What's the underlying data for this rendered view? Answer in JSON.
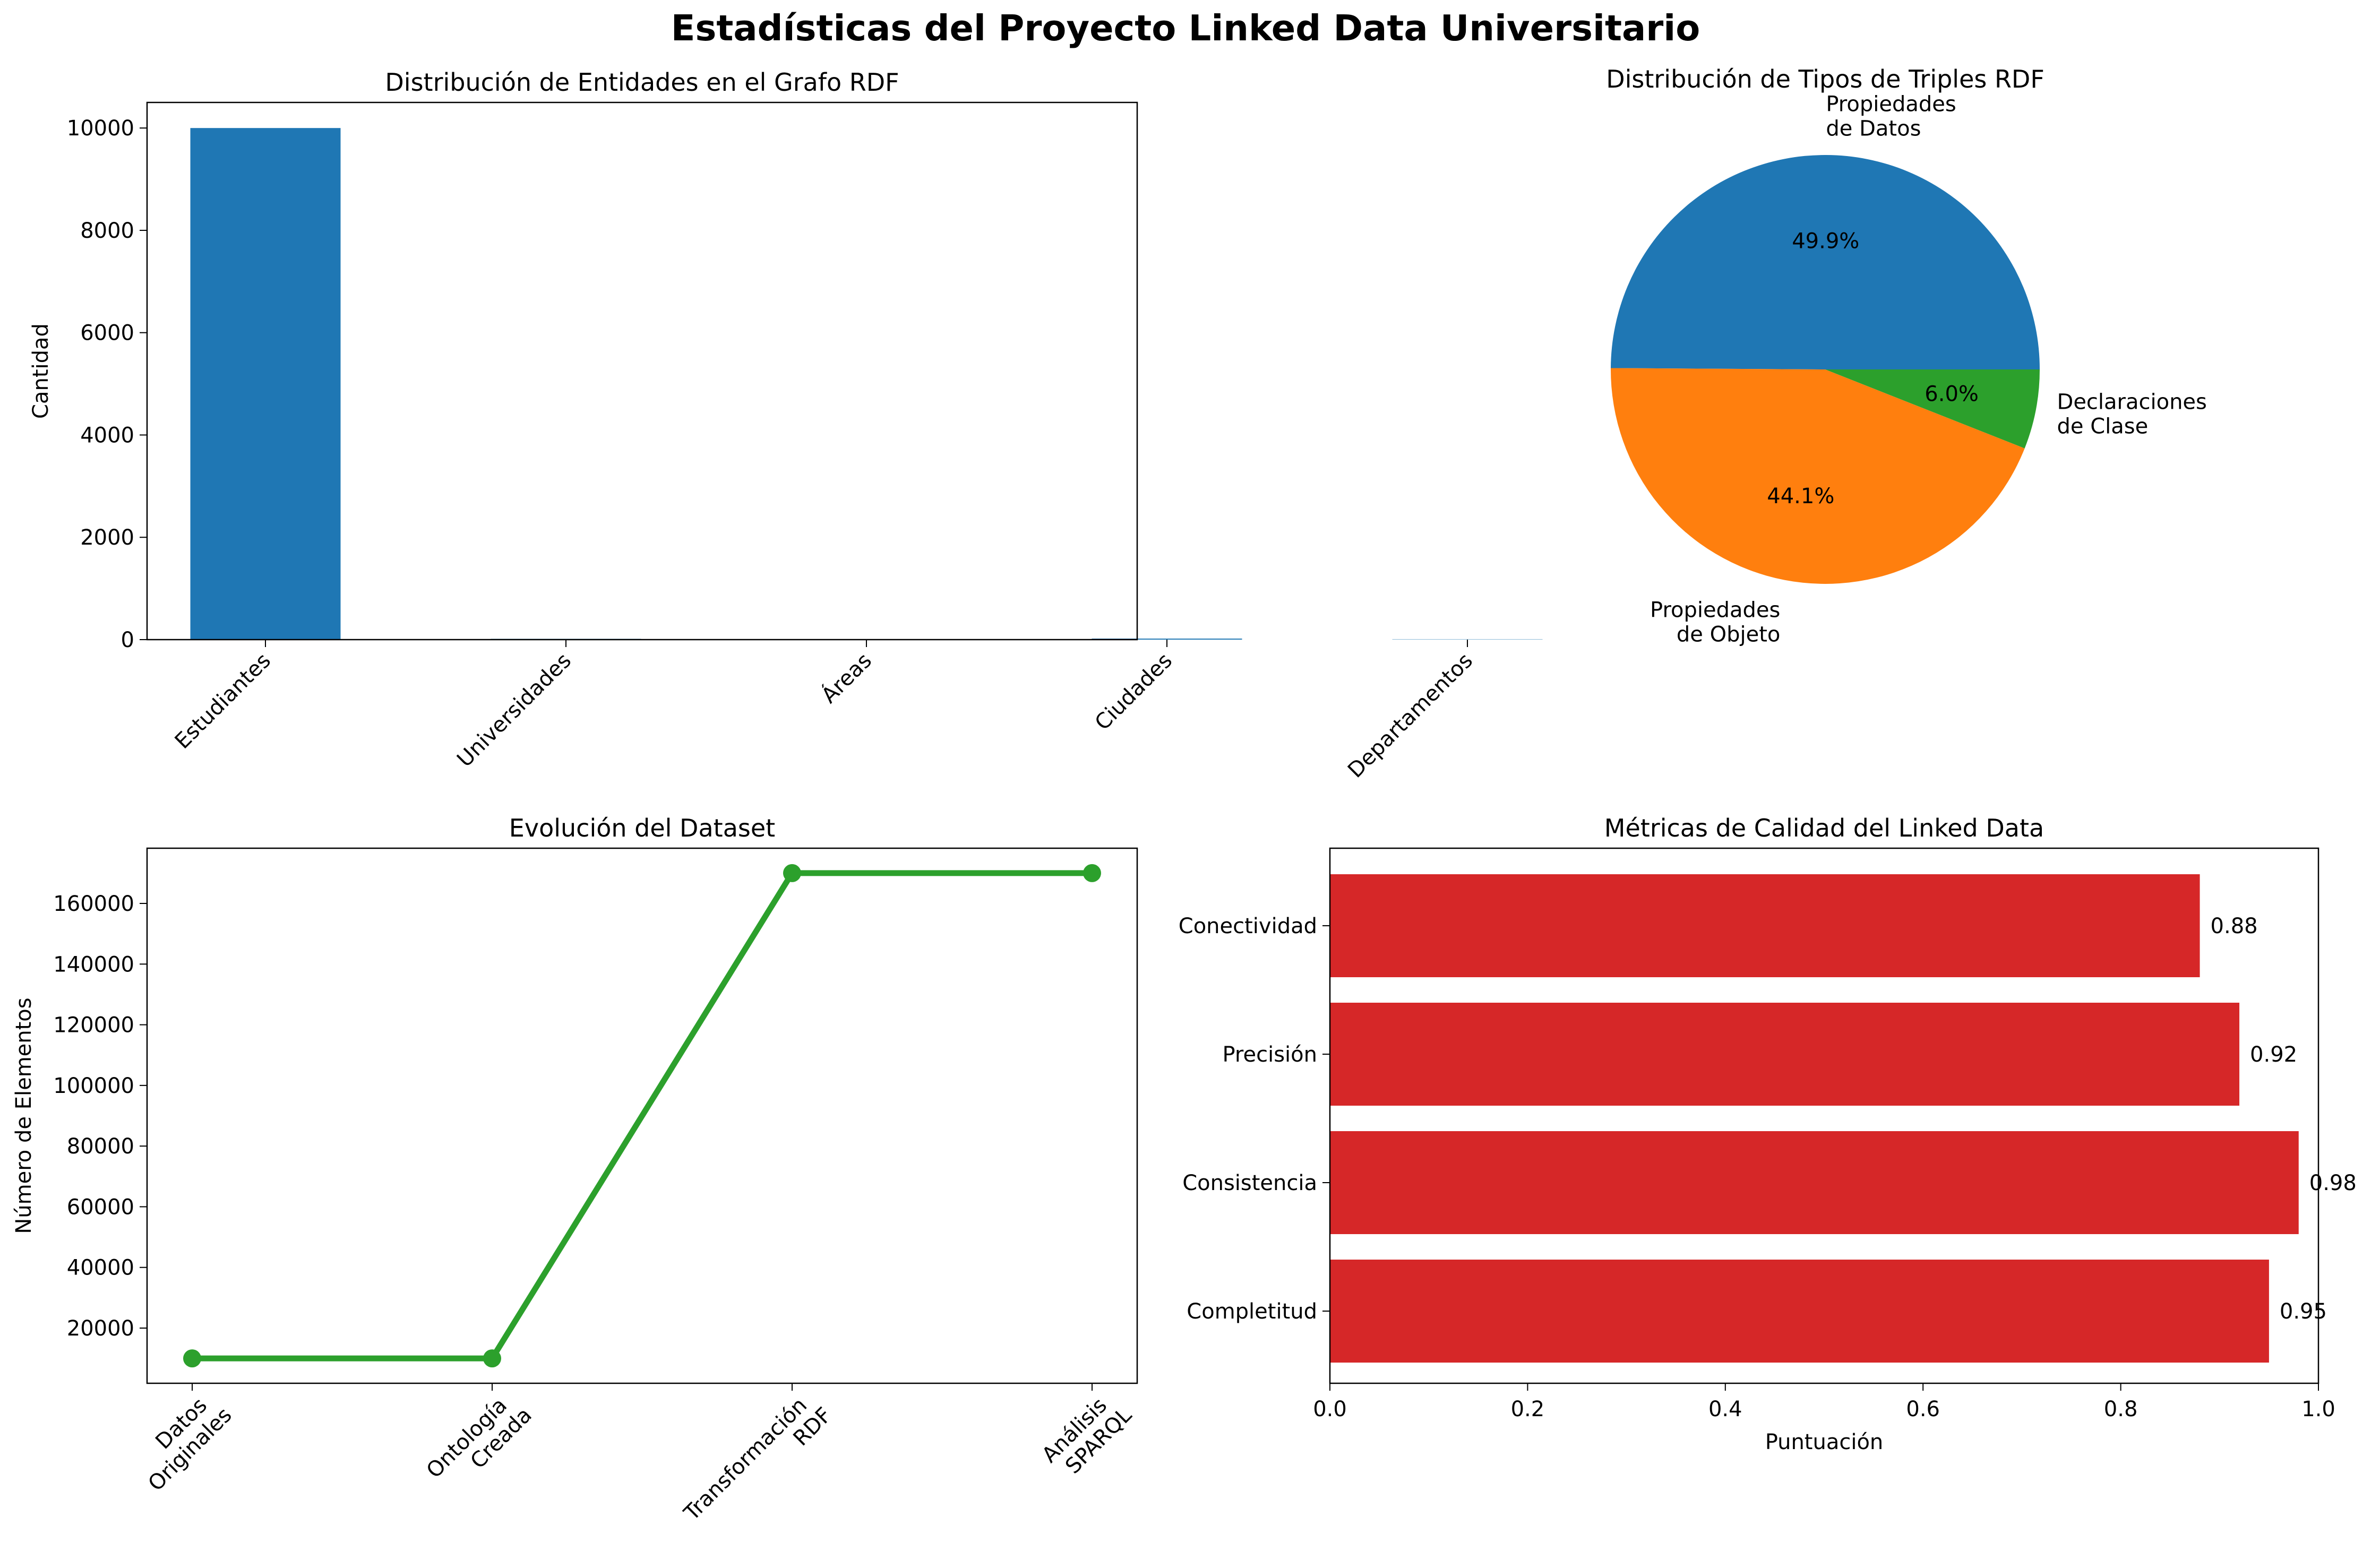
{
  "suptitle": "Estadísticas del Proyecto Linked Data Universitario",
  "chart_data": [
    {
      "type": "bar",
      "title": "Distribución de Entidades en el Grafo RDF",
      "xlabel": "",
      "ylabel": "Cantidad",
      "categories": [
        "Estudiantes",
        "Universidades",
        "Áreas",
        "Ciudades",
        "Departamentos"
      ],
      "values": [
        10000,
        15,
        8,
        20,
        5
      ],
      "ylim": [
        0,
        10500
      ],
      "yticks": [
        0,
        2000,
        4000,
        6000,
        8000,
        10000
      ],
      "color": "#1f77b4",
      "grid": false
    },
    {
      "type": "pie",
      "title": "Distribución de Tipos de Triples RDF",
      "labels": [
        "Propiedades de Datos",
        "Propiedades de Objeto",
        "Declaraciones de Clase"
      ],
      "values": [
        49.9,
        44.1,
        6.0
      ],
      "autopct": [
        "49.9%",
        "44.1%",
        "6.0%"
      ],
      "colors": [
        "#1f77b4",
        "#ff7f0e",
        "#2ca02c"
      ]
    },
    {
      "type": "line",
      "title": "Evolución del Dataset",
      "xlabel": "",
      "ylabel": "Número de Elementos",
      "categories": [
        "Datos Originales",
        "Ontología Creada",
        "Transformación RDF",
        "Análisis SPARQL"
      ],
      "values": [
        10000,
        10000,
        170000,
        170000
      ],
      "ylim": [
        1800,
        178200
      ],
      "yticks": [
        20000,
        40000,
        60000,
        80000,
        100000,
        120000,
        140000,
        160000
      ],
      "color": "#2ca02c",
      "marker": "o",
      "grid": false
    },
    {
      "type": "bar",
      "orientation": "horizontal",
      "title": "Métricas de Calidad del Linked Data",
      "xlabel": "Puntuación",
      "ylabel": "",
      "categories": [
        "Completitud",
        "Consistencia",
        "Precisión",
        "Conectividad"
      ],
      "values": [
        0.95,
        0.98,
        0.92,
        0.88
      ],
      "data_labels": [
        "0.95",
        "0.98",
        "0.92",
        "0.88"
      ],
      "xlim": [
        0,
        1.0
      ],
      "xticks": [
        0.0,
        0.2,
        0.4,
        0.6,
        0.8,
        1.0
      ],
      "color": "#d62728",
      "grid": false
    }
  ]
}
